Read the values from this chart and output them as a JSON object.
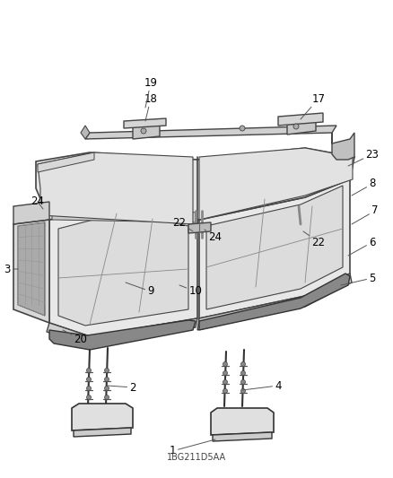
{
  "background_color": "#ffffff",
  "line_color": "#333333",
  "label_color": "#000000",
  "label_fontsize": 8.5,
  "figsize": [
    4.38,
    5.33
  ],
  "dpi": 100,
  "bottom_text": "1BG211D5AA",
  "seat_fill": "#f5f5f5",
  "seat_edge": "#444444",
  "dark_fill": "#cccccc",
  "panel_fill": "#bbbbbb"
}
